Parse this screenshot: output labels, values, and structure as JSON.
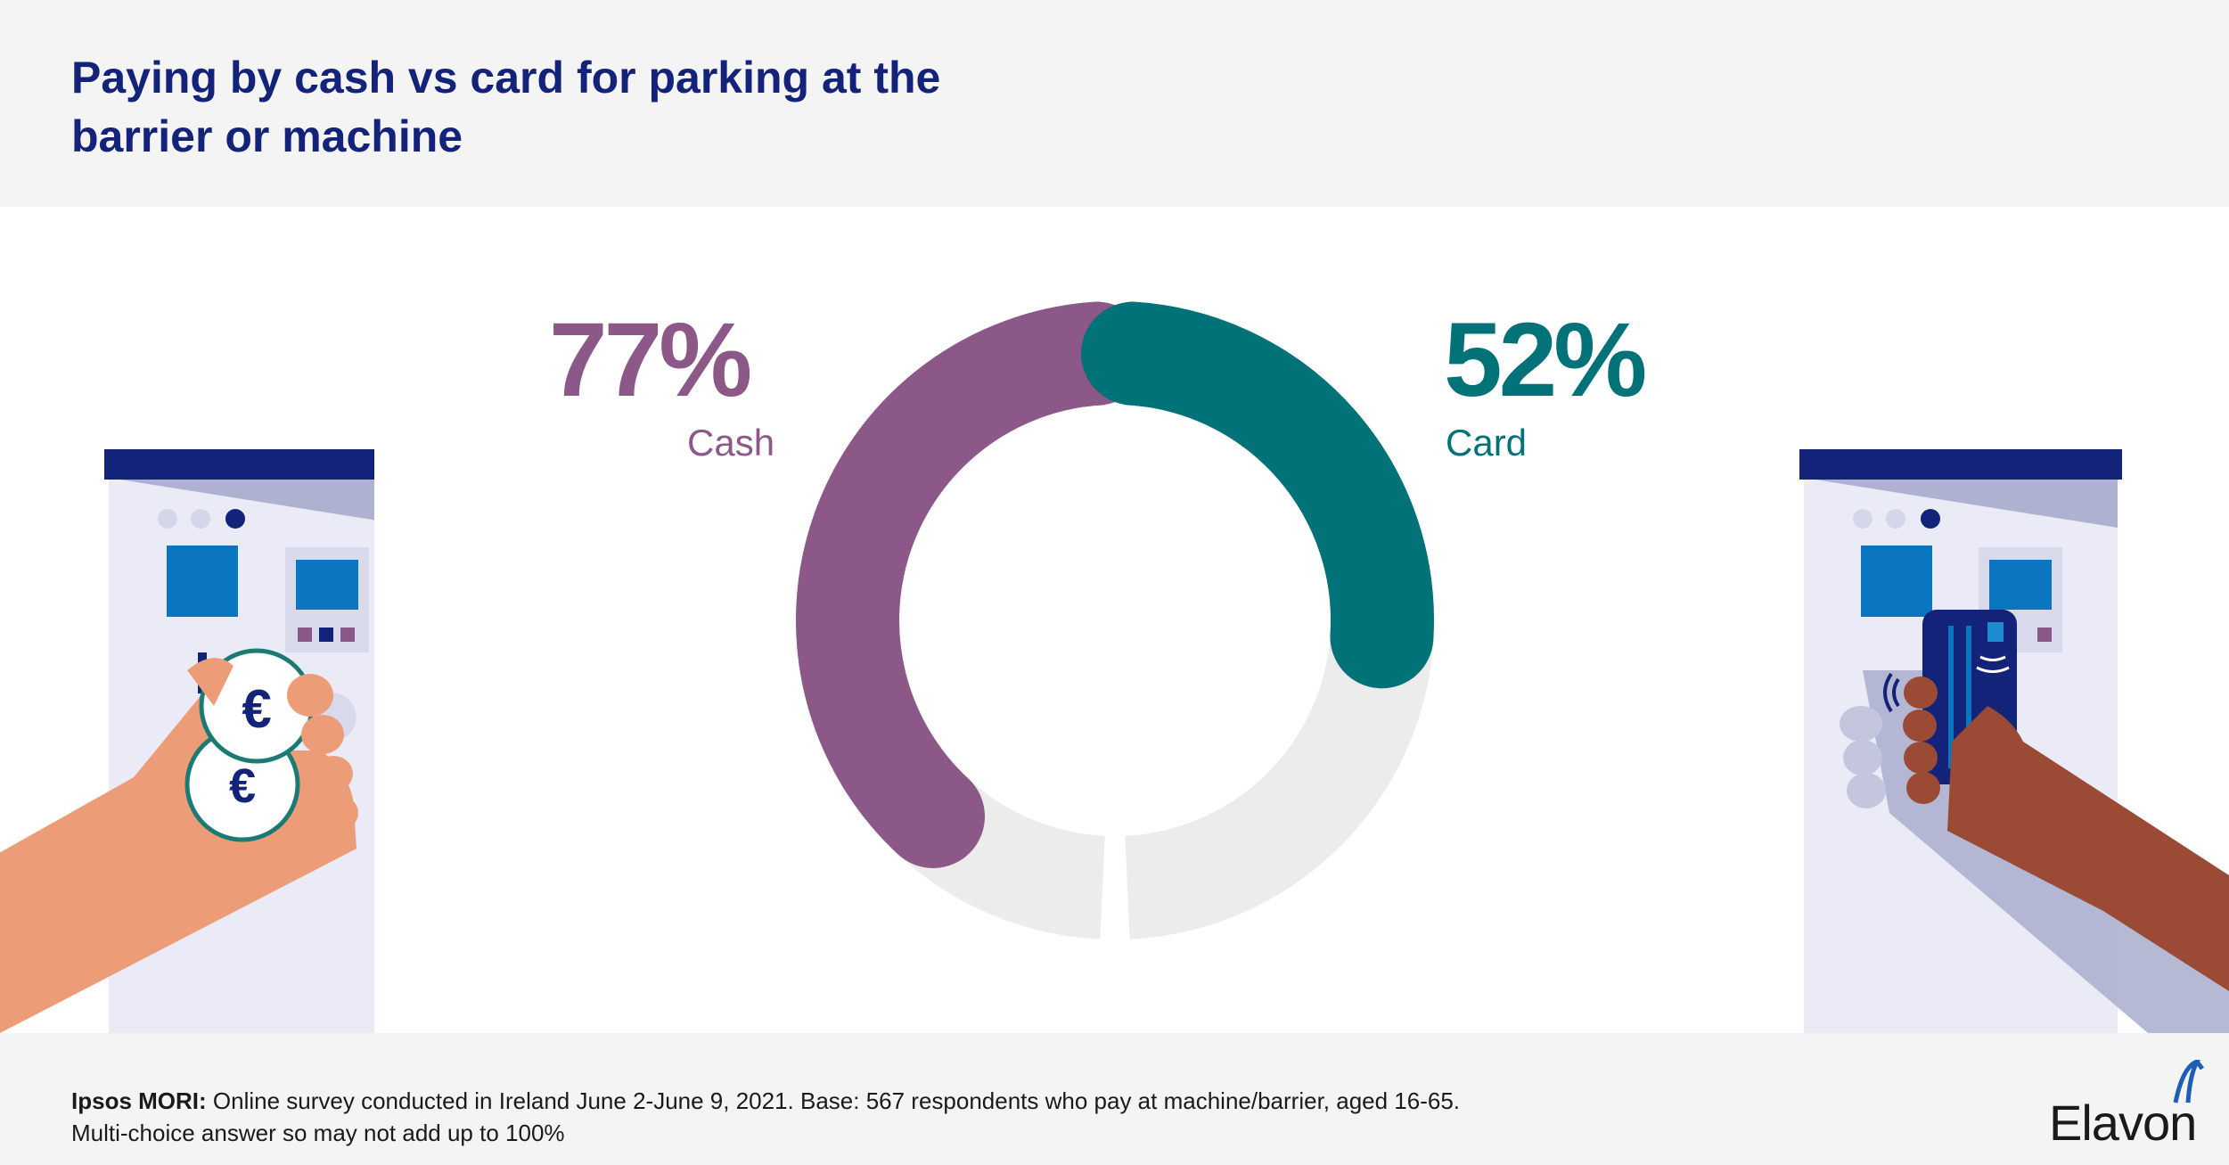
{
  "header": {
    "title_line1": "Paying by cash vs card for parking at the",
    "title_line2": "barrier or machine"
  },
  "chart_data": {
    "type": "pie",
    "title": "Paying by cash vs card for parking at the barrier or machine",
    "series": [
      {
        "name": "Cash",
        "value": 77,
        "label": "77%",
        "color": "#8b5888"
      },
      {
        "name": "Card",
        "value": 52,
        "label": "52%",
        "color": "#007278"
      }
    ],
    "unit": "%",
    "track_color": "#ececec"
  },
  "footer": {
    "source_bold": "Ipsos MORI:",
    "source_text": " Online survey conducted in Ireland June 2-June 9, 2021. Base: 567 respondents who pay at machine/barrier, aged 16-65.",
    "note": "Multi-choice answer so may not add up to 100%",
    "logo_text": "Elavon"
  },
  "icons": {
    "left_illustration": "cash-payment-machine-icon",
    "right_illustration": "card-payment-machine-icon",
    "coin_symbol": "€",
    "logo_mark": "elavon-logo-icon"
  },
  "colors": {
    "title": "#14237a",
    "machine_top": "#14237a",
    "machine_body": "#eaebf6",
    "machine_shade": "#aeb1cf",
    "screen_blue": "#0a76c0",
    "light_hand": "#ec9d78",
    "dark_hand": "#9b4a36"
  }
}
